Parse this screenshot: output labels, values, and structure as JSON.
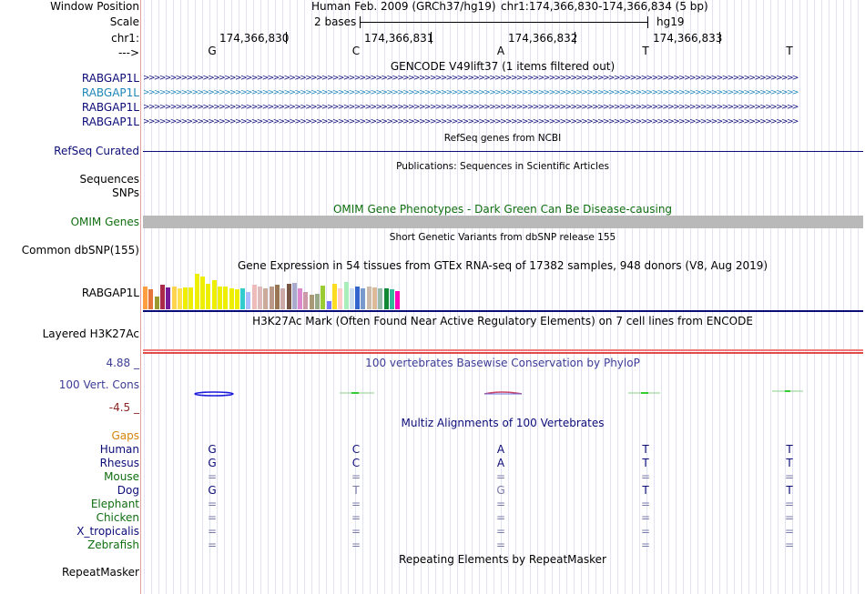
{
  "header": {
    "window_position_label": "Window Position",
    "assembly": "Human Feb. 2009 (GRCh37/hg19)",
    "position": "chr1:174,366,830-174,366,834 (5 bp)",
    "scale_label": "Scale",
    "scale_value": "2 bases",
    "db": "hg19",
    "chrom_label": "chr1:",
    "strand_label": "--->"
  },
  "ruler": {
    "ticks": [
      "174,366,830",
      "174,366,831",
      "174,366,832",
      "174,366,833"
    ],
    "bases": [
      "G",
      "C",
      "A",
      "T",
      "T"
    ]
  },
  "gencode": {
    "title": "GENCODE V49lift37 (1 items filtered out)",
    "tracks": [
      {
        "label": "RABGAP1L",
        "color": "#0c0c78"
      },
      {
        "label": "RABGAP1L",
        "color": "#1e86b8"
      },
      {
        "label": "RABGAP1L",
        "color": "#0c0c78"
      },
      {
        "label": "RABGAP1L",
        "color": "#0c0c78"
      }
    ],
    "chevrons": ">>>>>>>>>>>>>>>>>>>>>>>>>>>>>>>>>>>>>>>>>>>>>>>>>>>>>>>>>>>>>>>>>>>>>>>>>>>>>>>>>>>>>>>>>>>>>>>>>>>>>>>>>>>>>>>>>>>>>>>>>"
  },
  "refseq": {
    "title": "RefSeq genes from NCBI",
    "label": "RefSeq Curated",
    "color": "#0c0c78"
  },
  "publications": {
    "title": "Publications: Sequences in Scientific Articles",
    "labels": [
      "Sequences",
      "SNPs"
    ]
  },
  "omim": {
    "title": "OMIM Gene Phenotypes - Dark Green Can Be Disease-causing",
    "label": "OMIM Genes",
    "color": "#0f6e0f"
  },
  "dbsnp": {
    "title": "Short Genetic Variants from dbSNP release 155",
    "label": "Common dbSNP(155)"
  },
  "gtex": {
    "title": "Gene Expression in 54 tissues from GTEx RNA-seq of 17382 samples, 948 donors (V8, Aug 2019)",
    "label": "RABGAP1L",
    "bars": [
      {
        "v": 0.62,
        "c": "#ff9e3e"
      },
      {
        "v": 0.55,
        "c": "#e4763a"
      },
      {
        "v": 0.35,
        "c": "#9a9a2e"
      },
      {
        "v": 0.68,
        "c": "#aa2a4a"
      },
      {
        "v": 0.6,
        "c": "#771c99"
      },
      {
        "v": 0.62,
        "c": "#ffd44e"
      },
      {
        "v": 0.58,
        "c": "#ffe04e"
      },
      {
        "v": 0.6,
        "c": "#eeee00"
      },
      {
        "v": 0.6,
        "c": "#eeee00"
      },
      {
        "v": 0.98,
        "c": "#eeee00"
      },
      {
        "v": 0.9,
        "c": "#eeee00"
      },
      {
        "v": 0.7,
        "c": "#eeee00"
      },
      {
        "v": 0.8,
        "c": "#eeee00"
      },
      {
        "v": 0.62,
        "c": "#eeee00"
      },
      {
        "v": 0.62,
        "c": "#eeee00"
      },
      {
        "v": 0.58,
        "c": "#eeee00"
      },
      {
        "v": 0.55,
        "c": "#eeee00"
      },
      {
        "v": 0.58,
        "c": "#33cccc"
      },
      {
        "v": 0.48,
        "c": "#aabbff"
      },
      {
        "v": 0.68,
        "c": "#eebbbb"
      },
      {
        "v": 0.62,
        "c": "#ddbbbb"
      },
      {
        "v": 0.58,
        "c": "#ccaa99"
      },
      {
        "v": 0.62,
        "c": "#bb9988"
      },
      {
        "v": 0.68,
        "c": "#997755"
      },
      {
        "v": 0.58,
        "c": "#ccaaaa"
      },
      {
        "v": 0.7,
        "c": "#775544"
      },
      {
        "v": 0.72,
        "c": "#aaaacc"
      },
      {
        "v": 0.58,
        "c": "#dd88cc"
      },
      {
        "v": 0.48,
        "c": "#cc99aa"
      },
      {
        "v": 0.4,
        "c": "#aa9977"
      },
      {
        "v": 0.42,
        "c": "#99aa88"
      },
      {
        "v": 0.65,
        "c": "#99cc33"
      },
      {
        "v": 0.22,
        "c": "#7777ff"
      },
      {
        "v": 0.7,
        "c": "#ffdd22"
      },
      {
        "v": 0.58,
        "c": "#ffcccc"
      },
      {
        "v": 0.75,
        "c": "#aaeebb"
      },
      {
        "v": 0.58,
        "c": "#ccddee"
      },
      {
        "v": 0.62,
        "c": "#3366cc"
      },
      {
        "v": 0.58,
        "c": "#7799cc"
      },
      {
        "v": 0.62,
        "c": "#ccbbaa"
      },
      {
        "v": 0.6,
        "c": "#ddbb99"
      },
      {
        "v": 0.58,
        "c": "#99bbaa"
      },
      {
        "v": 0.58,
        "c": "#118833"
      },
      {
        "v": 0.55,
        "c": "#33bb99"
      },
      {
        "v": 0.5,
        "c": "#ff00bb"
      }
    ]
  },
  "h3k27ac": {
    "title": "H3K27Ac Mark (Often Found Near Active Regulatory Elements) on 7 cell lines from ENCODE",
    "label": "Layered H3K27Ac"
  },
  "conservation": {
    "title": "100 vertebrates Basewise Conservation by PhyloP",
    "label": "100 Vert. Cons",
    "max_label": "4.88 _",
    "min_label": "-4.5 _",
    "max": 4.88,
    "min": -4.5,
    "label_color": "#3c3c96",
    "min_color": "#8b2323"
  },
  "multiz": {
    "title": "Multiz Alignments of 100 Vertebrates",
    "gaps_label": "Gaps",
    "gaps_color": "#d4850a",
    "species": [
      {
        "name": "Human",
        "color": "#0c0c78",
        "bases": [
          "G",
          "C",
          "A",
          "T",
          "T"
        ]
      },
      {
        "name": "Rhesus",
        "color": "#0c0c78",
        "bases": [
          "G",
          "C",
          "A",
          "T",
          "T"
        ]
      },
      {
        "name": "Mouse",
        "color": "#0f6e0f",
        "bases": [
          "=",
          "=",
          "=",
          "=",
          "="
        ]
      },
      {
        "name": "Dog",
        "color": "#0c0c78",
        "bases": [
          "G",
          "T",
          "G",
          "T",
          "T"
        ]
      },
      {
        "name": "Elephant",
        "color": "#0f6e0f",
        "bases": [
          "=",
          "=",
          "=",
          "=",
          "="
        ]
      },
      {
        "name": "Chicken",
        "color": "#0f6e0f",
        "bases": [
          "=",
          "=",
          "=",
          "=",
          "="
        ]
      },
      {
        "name": "X_tropicalis",
        "color": "#0c0c78",
        "bases": [
          "=",
          "=",
          "=",
          "=",
          "="
        ]
      },
      {
        "name": "Zebrafish",
        "color": "#0f6e0f",
        "bases": [
          "=",
          "=",
          "=",
          "=",
          "="
        ]
      }
    ]
  },
  "repeatmasker": {
    "title": "Repeating Elements by RepeatMasker",
    "label": "RepeatMasker"
  }
}
